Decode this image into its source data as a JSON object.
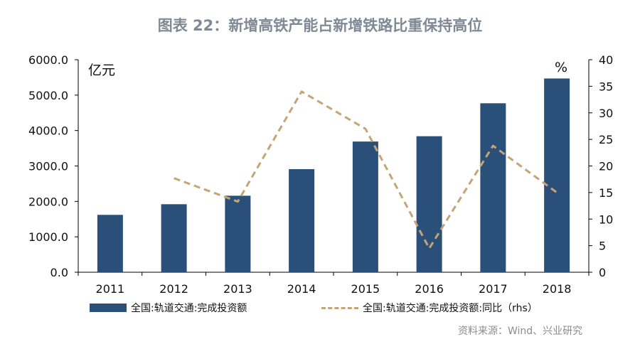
{
  "title": "图表 22：新增高铁产能占新增铁路比重保持高位",
  "source": "资料来源：Wind、兴业研究",
  "chart_data": {
    "type": "bar",
    "categories": [
      "2011",
      "2012",
      "2013",
      "2014",
      "2015",
      "2016",
      "2017",
      "2018"
    ],
    "series": [
      {
        "name": "全国:轨道交通:完成投资额",
        "type": "bar",
        "axis": "left",
        "values": [
          1620,
          1920,
          2160,
          2910,
          3690,
          3840,
          4770,
          5470
        ],
        "color": "#2a5079"
      },
      {
        "name": "全国:轨道交通:完成投资额:同比（rhs）",
        "type": "line",
        "style": "dashed",
        "axis": "right",
        "values": [
          null,
          17.7,
          13.3,
          34.0,
          27.0,
          4.5,
          23.8,
          15.0
        ],
        "color": "#c5a575"
      }
    ],
    "left_axis": {
      "unit": "亿元",
      "min": 0,
      "max": 6000,
      "ticks": [
        0,
        1000,
        2000,
        3000,
        4000,
        5000,
        6000
      ],
      "tick_labels": [
        "0.0",
        "1000.0",
        "2000.0",
        "3000.0",
        "4000.0",
        "5000.0",
        "6000.0"
      ]
    },
    "right_axis": {
      "unit": "%",
      "min": 0,
      "max": 40,
      "ticks": [
        0,
        5,
        10,
        15,
        20,
        25,
        30,
        35,
        40
      ],
      "tick_labels": [
        "0",
        "5",
        "10",
        "15",
        "20",
        "25",
        "30",
        "35",
        "40"
      ]
    },
    "grid": false,
    "legend_position": "bottom"
  }
}
